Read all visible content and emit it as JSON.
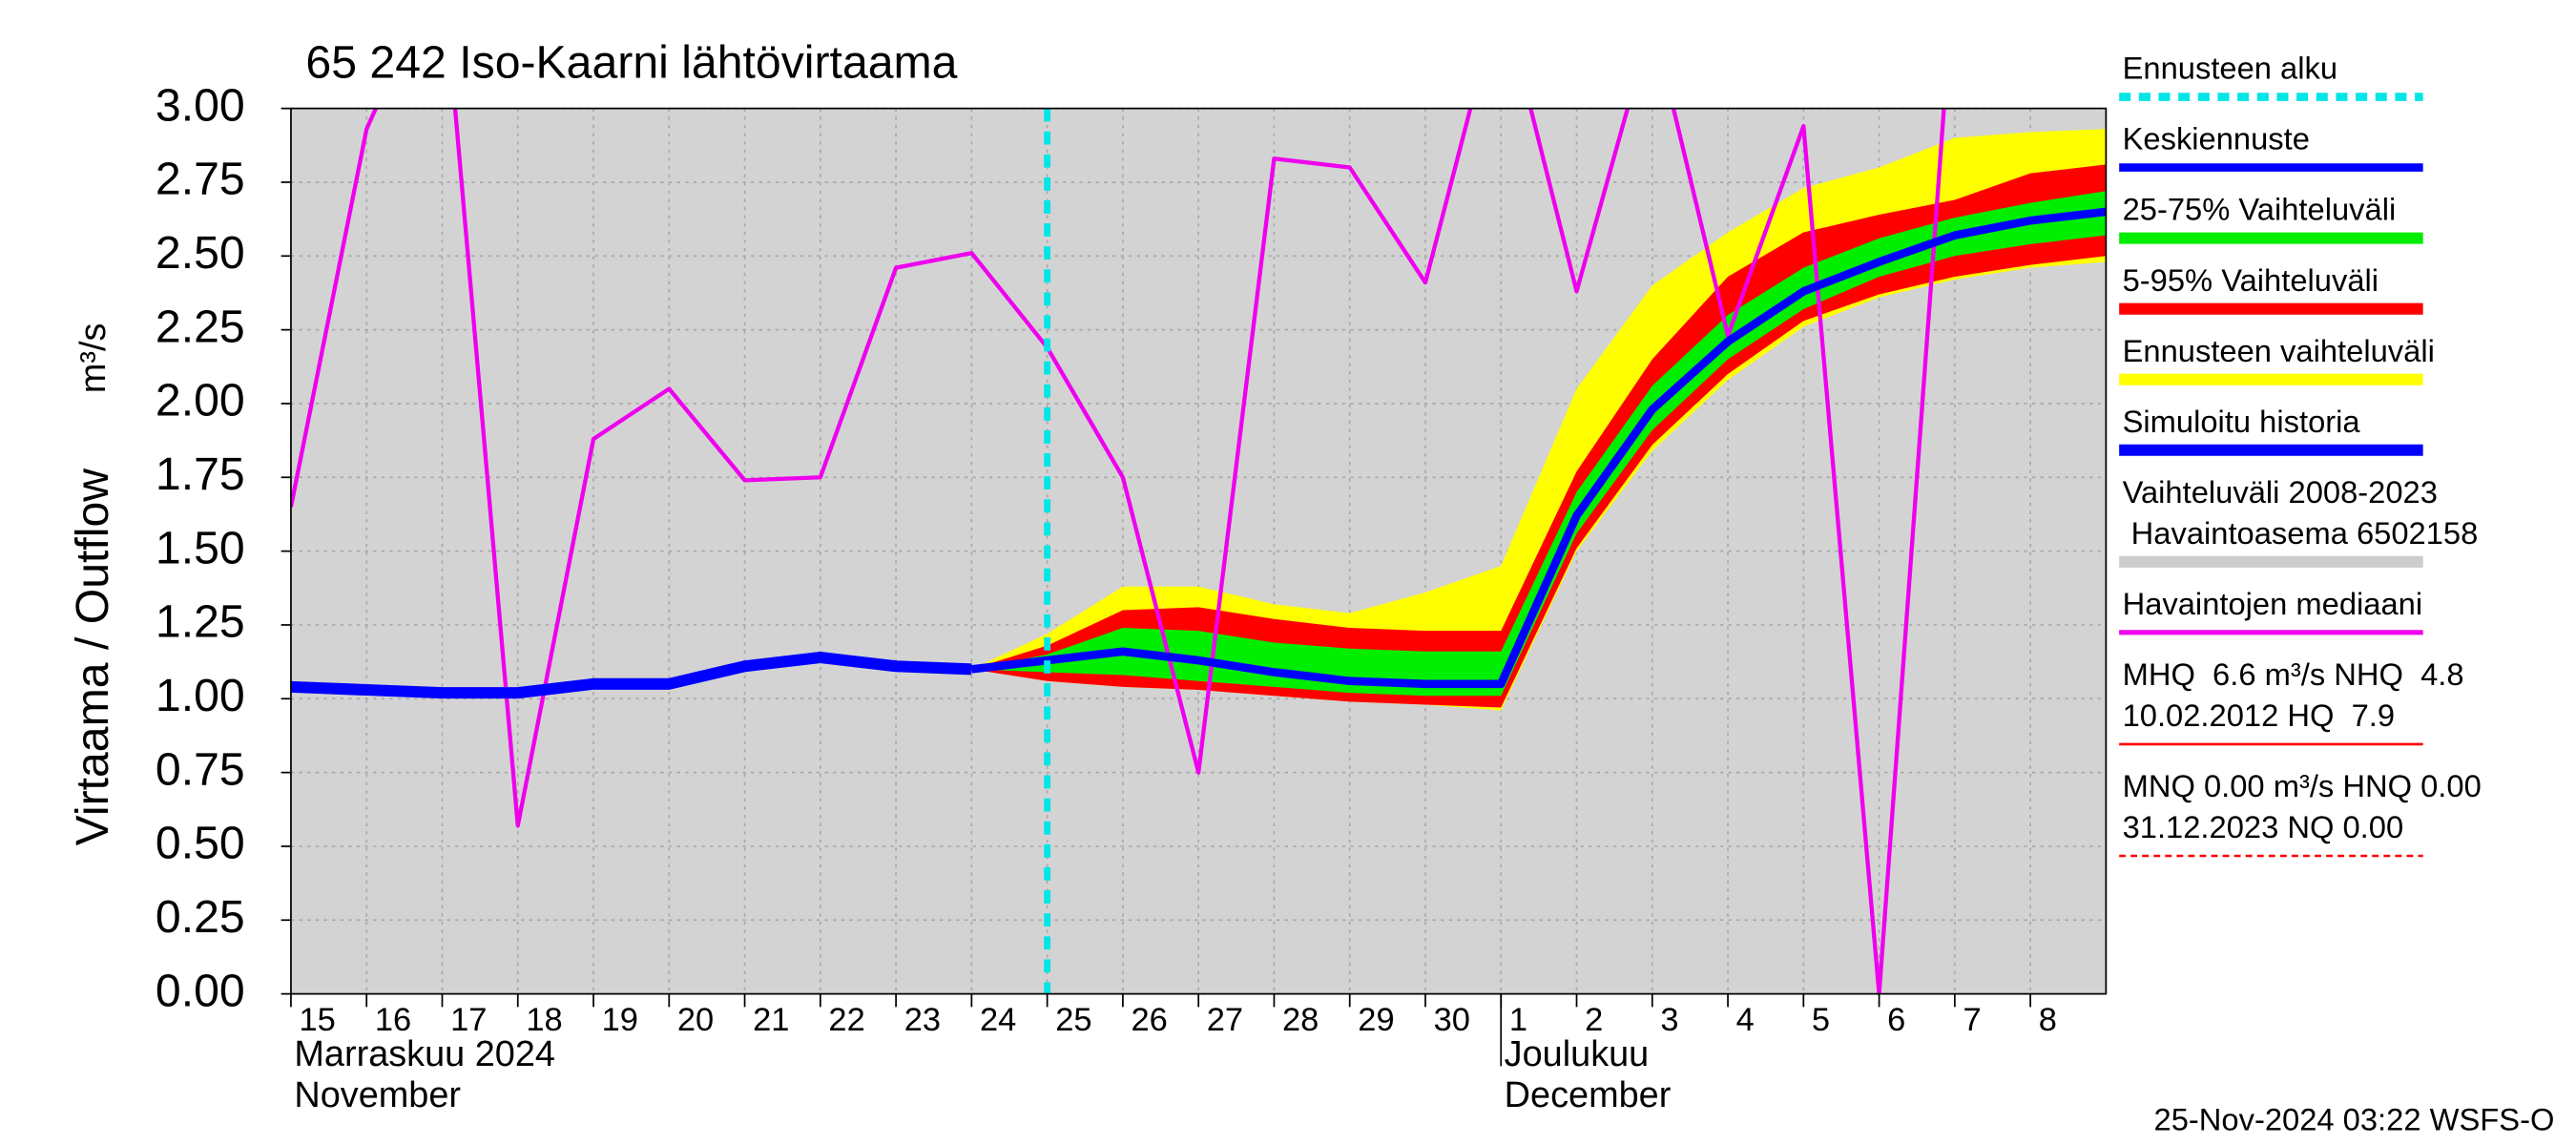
{
  "chart_data": {
    "type": "line",
    "title": "65 242 Iso-Kaarni lähtövirtaama",
    "y_label": "Virtaama / Outflow",
    "y_unit": "m³/s",
    "x": [
      0,
      1,
      2,
      3,
      4,
      5,
      6,
      7,
      8,
      9,
      10,
      11,
      12,
      13,
      14,
      15,
      16,
      17,
      18,
      19,
      20,
      21,
      22,
      23,
      24
    ],
    "xlim": [
      0,
      24
    ],
    "xticks": [
      {
        "value": 0,
        "label": "15"
      },
      {
        "value": 1,
        "label": "16"
      },
      {
        "value": 2,
        "label": "17"
      },
      {
        "value": 3,
        "label": "18"
      },
      {
        "value": 4,
        "label": "19"
      },
      {
        "value": 5,
        "label": "20"
      },
      {
        "value": 6,
        "label": "21"
      },
      {
        "value": 7,
        "label": "22"
      },
      {
        "value": 8,
        "label": "23"
      },
      {
        "value": 9,
        "label": "24"
      },
      {
        "value": 10,
        "label": "25"
      },
      {
        "value": 11,
        "label": "26"
      },
      {
        "value": 12,
        "label": "27"
      },
      {
        "value": 13,
        "label": "28"
      },
      {
        "value": 14,
        "label": "29"
      },
      {
        "value": 15,
        "label": "30"
      },
      {
        "value": 16,
        "label": "1"
      },
      {
        "value": 17,
        "label": "2"
      },
      {
        "value": 18,
        "label": "3"
      },
      {
        "value": 19,
        "label": "4"
      },
      {
        "value": 20,
        "label": "5"
      },
      {
        "value": 21,
        "label": "6"
      },
      {
        "value": 22,
        "label": "7"
      },
      {
        "value": 23,
        "label": "8"
      }
    ],
    "months": [
      {
        "value": 0,
        "labels": [
          "Marraskuu 2024",
          "November"
        ]
      },
      {
        "value": 16,
        "labels": [
          "Joulukuu",
          "December"
        ]
      }
    ],
    "ylim": [
      0,
      3
    ],
    "yticks": [
      {
        "value": 0,
        "label": "0.00"
      },
      {
        "value": 0.25,
        "label": "0.25"
      },
      {
        "value": 0.5,
        "label": "0.50"
      },
      {
        "value": 0.75,
        "label": "0.75"
      },
      {
        "value": 1,
        "label": "1.00"
      },
      {
        "value": 1.25,
        "label": "1.25"
      },
      {
        "value": 1.5,
        "label": "1.50"
      },
      {
        "value": 1.75,
        "label": "1.75"
      },
      {
        "value": 2,
        "label": "2.00"
      },
      {
        "value": 2.25,
        "label": "2.25"
      },
      {
        "value": 2.5,
        "label": "2.50"
      },
      {
        "value": 2.75,
        "label": "2.75"
      },
      {
        "value": 3,
        "label": "3.00"
      }
    ],
    "grid": true,
    "forecast_start": {
      "name": "Ennusteen alku",
      "x": 10,
      "color": "#00e5e5"
    },
    "bands": [
      {
        "name": "Ennusteen vaihteluväli",
        "color": "#ffff00",
        "upper": [
          null,
          null,
          null,
          null,
          null,
          null,
          null,
          null,
          null,
          1.1,
          1.22,
          1.38,
          1.38,
          1.32,
          1.29,
          1.36,
          1.45,
          2.05,
          2.4,
          2.58,
          2.73,
          2.8,
          2.9,
          2.92,
          2.93
        ],
        "lower": [
          null,
          null,
          null,
          null,
          null,
          null,
          null,
          null,
          null,
          1.1,
          1.06,
          1.04,
          1.03,
          1.01,
          0.99,
          0.98,
          0.96,
          1.5,
          1.84,
          2.08,
          2.26,
          2.36,
          2.42,
          2.46,
          2.48
        ]
      },
      {
        "name": "5-95% Vaihteluväli",
        "color": "#ff0000",
        "upper": [
          null,
          null,
          null,
          null,
          null,
          null,
          null,
          null,
          null,
          1.1,
          1.18,
          1.3,
          1.31,
          1.27,
          1.24,
          1.23,
          1.23,
          1.77,
          2.15,
          2.43,
          2.58,
          2.64,
          2.69,
          2.78,
          2.81
        ],
        "lower": [
          null,
          null,
          null,
          null,
          null,
          null,
          null,
          null,
          null,
          1.1,
          1.06,
          1.04,
          1.03,
          1.01,
          0.99,
          0.98,
          0.97,
          1.51,
          1.86,
          2.1,
          2.28,
          2.37,
          2.43,
          2.47,
          2.5
        ]
      },
      {
        "name": "25-75% Vaihteluväli",
        "color": "#00ee00",
        "upper": [
          null,
          null,
          null,
          null,
          null,
          null,
          null,
          null,
          null,
          1.1,
          1.15,
          1.24,
          1.23,
          1.19,
          1.17,
          1.16,
          1.16,
          1.7,
          2.06,
          2.3,
          2.46,
          2.56,
          2.63,
          2.68,
          2.72
        ],
        "lower": [
          null,
          null,
          null,
          null,
          null,
          null,
          null,
          null,
          null,
          1.1,
          1.09,
          1.08,
          1.06,
          1.04,
          1.02,
          1.01,
          1.01,
          1.56,
          1.91,
          2.15,
          2.32,
          2.43,
          2.5,
          2.54,
          2.57
        ]
      }
    ],
    "series": [
      {
        "name": "Keskiennuste",
        "color": "#0000ff",
        "width": 5,
        "values": [
          null,
          null,
          null,
          null,
          null,
          null,
          null,
          null,
          null,
          1.1,
          1.13,
          1.16,
          1.13,
          1.09,
          1.06,
          1.05,
          1.05,
          1.62,
          1.98,
          2.21,
          2.38,
          2.48,
          2.57,
          2.62,
          2.65
        ]
      },
      {
        "name": "Simuloitu historia",
        "color": "#0000ff",
        "width": 7,
        "values": [
          1.04,
          1.03,
          1.02,
          1.02,
          1.05,
          1.05,
          1.11,
          1.14,
          1.11,
          1.1,
          null,
          null,
          null,
          null,
          null,
          null,
          null,
          null,
          null,
          null,
          null,
          null,
          null,
          null,
          null
        ]
      },
      {
        "name": "Havaintojen mediaani",
        "color": "#ee00ee",
        "width": 2.5,
        "values": [
          1.65,
          2.93,
          3.5,
          0.57,
          1.88,
          2.05,
          1.74,
          1.75,
          2.46,
          2.51,
          2.19,
          1.75,
          0.75,
          2.83,
          2.8,
          2.41,
          3.4,
          2.38,
          3.3,
          2.23,
          2.94,
          0.0,
          3.5,
          null,
          null
        ]
      }
    ],
    "range": {
      "lines": [
        "Vaihteluväli 2008-2023",
        " Havaintoasema 6502158"
      ],
      "color": "#cccccc"
    },
    "stats": [
      {
        "lines": [
          "MHQ  6.6 m³/s NHQ  4.8",
          "10.02.2012 HQ  7.9"
        ],
        "color": "#ff0000",
        "dashed": false
      },
      {
        "lines": [
          "MNQ 0.00 m³/s HNQ 0.00",
          "31.12.2023 NQ 0.00"
        ],
        "color": "#ff0000",
        "dashed": true
      }
    ],
    "footer": "25-Nov-2024 03:22 WSFS-O"
  }
}
